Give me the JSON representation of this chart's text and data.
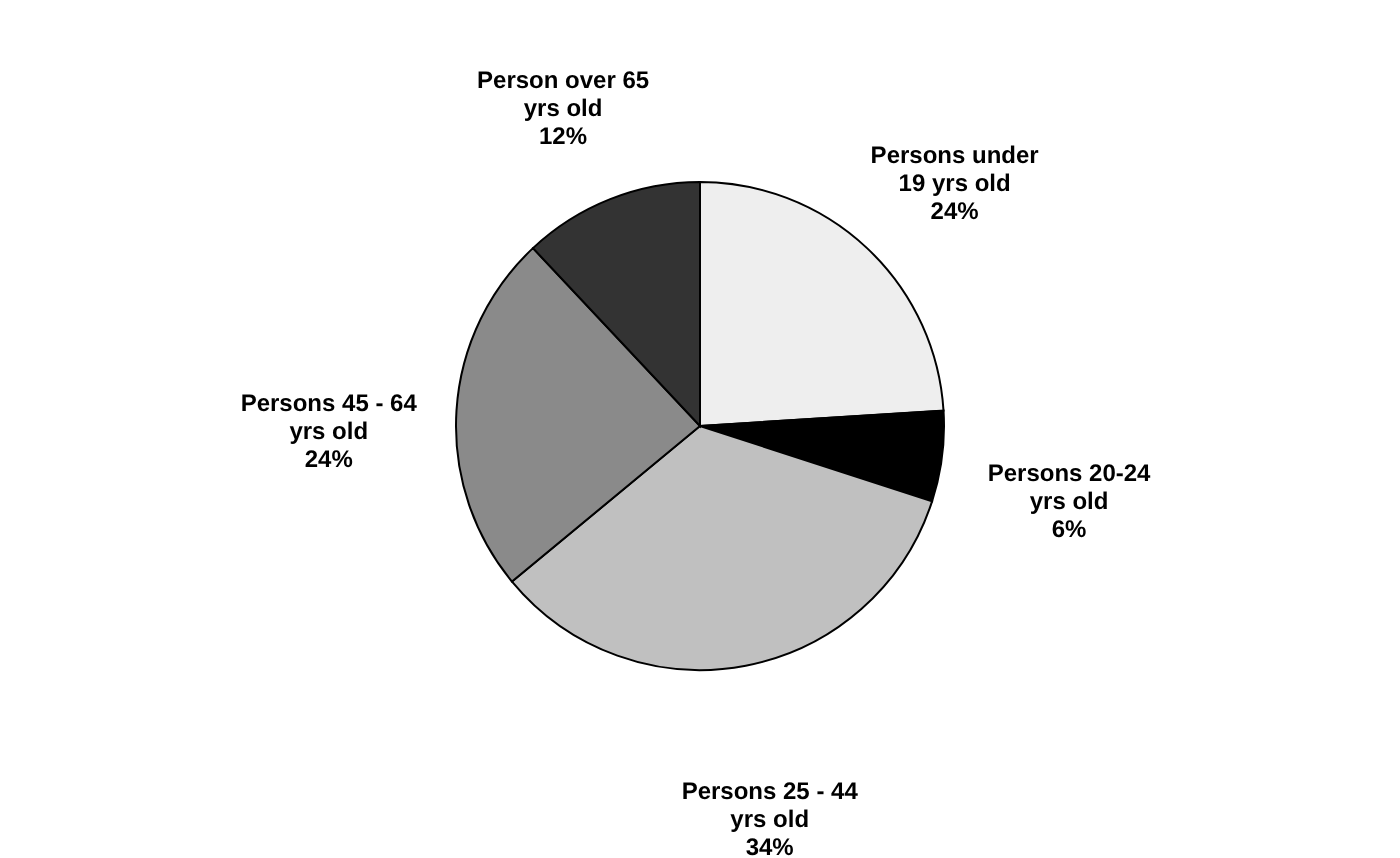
{
  "chart_data": {
    "type": "pie",
    "categories": [
      "Persons under 19 yrs old",
      "Persons 20-24 yrs old",
      "Persons 25 - 44 yrs old",
      "Persons 45 - 64 yrs old",
      "Person over 65 yrs old"
    ],
    "values": [
      24,
      6,
      34,
      24,
      12
    ],
    "value_labels": [
      "24%",
      "6%",
      "34%",
      "24%",
      "12%"
    ],
    "colors": [
      "#eeeeee",
      "#000000",
      "#c0c0c0",
      "#8a8a8a",
      "#333333"
    ],
    "legend": false
  }
}
